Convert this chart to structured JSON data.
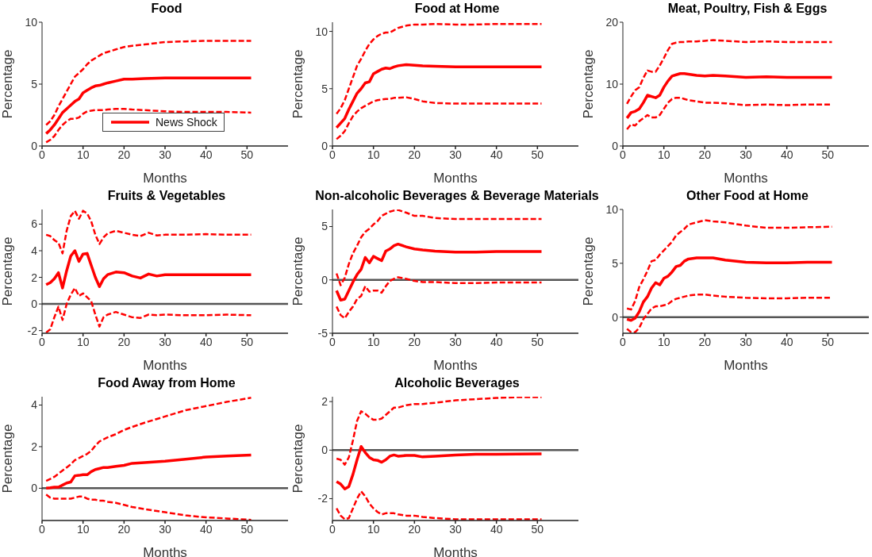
{
  "chart_data": [
    {
      "type": "line",
      "title": "Food",
      "xlabel": "Months",
      "ylabel": "Percentage",
      "xlim": [
        0,
        60
      ],
      "xticks": [
        0,
        10,
        20,
        30,
        40,
        50
      ],
      "ylim": [
        0,
        10
      ],
      "yticks": [
        0,
        5,
        10
      ],
      "legend": "bottom",
      "x": [
        1,
        2,
        3,
        4,
        5,
        6,
        7,
        8,
        9,
        10,
        11,
        12,
        13,
        14,
        15,
        16,
        18,
        20,
        22,
        25,
        30,
        35,
        40,
        45,
        51
      ],
      "series": [
        {
          "name": "News Shock",
          "color": "#ff0000",
          "line_style": "solid",
          "values": [
            1.0,
            1.3,
            1.7,
            2.2,
            2.7,
            3.0,
            3.3,
            3.6,
            3.8,
            4.3,
            4.5,
            4.7,
            4.85,
            4.9,
            5.0,
            5.1,
            5.25,
            5.4,
            5.4,
            5.45,
            5.5,
            5.5,
            5.5,
            5.5,
            5.5
          ]
        },
        {
          "color": "#ff0000",
          "line_style": "dashed",
          "values": [
            1.7,
            2.0,
            2.5,
            3.2,
            3.8,
            4.4,
            5.0,
            5.6,
            5.9,
            6.2,
            6.6,
            6.9,
            7.1,
            7.3,
            7.5,
            7.6,
            7.8,
            8.0,
            8.1,
            8.2,
            8.4,
            8.45,
            8.5,
            8.5,
            8.5
          ]
        },
        {
          "color": "#ff0000",
          "line_style": "dashed",
          "values": [
            0.3,
            0.5,
            0.8,
            1.3,
            1.7,
            2.0,
            2.2,
            2.2,
            2.3,
            2.6,
            2.8,
            2.85,
            2.9,
            2.9,
            2.9,
            2.95,
            3.0,
            3.0,
            2.95,
            2.9,
            2.8,
            2.75,
            2.75,
            2.75,
            2.7
          ]
        }
      ]
    },
    {
      "type": "line",
      "title": "Food at Home",
      "xlabel": "Months",
      "ylabel": "Percentage",
      "xlim": [
        0,
        60
      ],
      "xticks": [
        0,
        10,
        20,
        30,
        40,
        50
      ],
      "ylim": [
        0,
        10.8
      ],
      "yticks": [
        0,
        5,
        10
      ],
      "x": [
        1,
        2,
        3,
        4,
        5,
        6,
        7,
        8,
        9,
        10,
        11,
        12,
        13,
        14,
        15,
        16,
        18,
        20,
        22,
        25,
        30,
        35,
        40,
        45,
        51
      ],
      "series": [
        {
          "color": "#ff0000",
          "line_style": "solid",
          "values": [
            1.6,
            2.0,
            2.4,
            3.2,
            3.9,
            4.6,
            5.0,
            5.5,
            5.6,
            6.3,
            6.5,
            6.7,
            6.8,
            6.75,
            6.9,
            7.0,
            7.1,
            7.05,
            7.0,
            6.95,
            6.9,
            6.9,
            6.9,
            6.9,
            6.9
          ]
        },
        {
          "color": "#ff0000",
          "line_style": "dashed",
          "values": [
            2.8,
            3.3,
            4.0,
            5.0,
            6.0,
            7.0,
            7.6,
            8.3,
            8.9,
            9.3,
            9.6,
            9.8,
            9.9,
            9.9,
            10.1,
            10.3,
            10.5,
            10.6,
            10.6,
            10.65,
            10.6,
            10.6,
            10.65,
            10.65,
            10.65
          ]
        },
        {
          "color": "#ff0000",
          "line_style": "dashed",
          "values": [
            0.6,
            0.9,
            1.3,
            2.0,
            2.6,
            3.0,
            3.3,
            3.5,
            3.7,
            3.9,
            4.0,
            4.05,
            4.1,
            4.1,
            4.2,
            4.2,
            4.25,
            4.1,
            3.9,
            3.75,
            3.7,
            3.7,
            3.7,
            3.7,
            3.7
          ]
        }
      ]
    },
    {
      "type": "line",
      "title": "Meat, Poultry, Fish & Eggs",
      "xlabel": "Months",
      "ylabel": "Percentage",
      "xlim": [
        0,
        60
      ],
      "xticks": [
        0,
        10,
        20,
        30,
        40,
        50
      ],
      "ylim": [
        0,
        20
      ],
      "yticks": [
        0,
        10,
        20
      ],
      "x": [
        1,
        2,
        3,
        4,
        5,
        6,
        7,
        8,
        9,
        10,
        11,
        12,
        13,
        14,
        15,
        16,
        18,
        20,
        22,
        25,
        30,
        35,
        40,
        45,
        51
      ],
      "series": [
        {
          "color": "#ff0000",
          "line_style": "solid",
          "values": [
            4.5,
            5.4,
            5.6,
            6.0,
            7.0,
            8.2,
            8.0,
            7.8,
            8.2,
            9.5,
            10.5,
            11.3,
            11.5,
            11.7,
            11.7,
            11.6,
            11.4,
            11.3,
            11.4,
            11.3,
            11.1,
            11.2,
            11.1,
            11.1,
            11.1
          ]
        },
        {
          "color": "#ff0000",
          "line_style": "dashed",
          "values": [
            6.8,
            8.0,
            9.0,
            9.5,
            11.0,
            12.2,
            12.0,
            12.0,
            13.0,
            14.2,
            15.5,
            16.5,
            16.7,
            16.8,
            16.8,
            16.9,
            16.9,
            17.0,
            17.1,
            17.0,
            16.8,
            16.9,
            16.8,
            16.8,
            16.8
          ]
        },
        {
          "color": "#ff0000",
          "line_style": "dashed",
          "values": [
            2.7,
            3.5,
            3.3,
            4.0,
            4.5,
            5.0,
            4.6,
            4.6,
            5.0,
            6.0,
            7.0,
            7.6,
            7.8,
            7.8,
            7.6,
            7.4,
            7.2,
            7.0,
            7.0,
            6.9,
            6.6,
            6.7,
            6.6,
            6.7,
            6.7
          ]
        }
      ]
    },
    {
      "type": "line",
      "title": "Fruits & Vegetables",
      "xlabel": "Months",
      "ylabel": "Percentage",
      "xlim": [
        0,
        60
      ],
      "xticks": [
        0,
        10,
        20,
        30,
        40,
        50
      ],
      "ylim": [
        -2.2,
        7.1
      ],
      "yticks": [
        -2,
        0,
        2,
        4,
        6
      ],
      "ref_lines": [
        {
          "axis": "y",
          "value": 0,
          "color": "#555555"
        }
      ],
      "x": [
        1,
        2,
        3,
        4,
        5,
        6,
        7,
        8,
        9,
        10,
        11,
        12,
        13,
        14,
        15,
        16,
        18,
        20,
        22,
        24,
        26,
        28,
        30,
        35,
        40,
        45,
        51
      ],
      "series": [
        {
          "color": "#ff0000",
          "line_style": "solid",
          "values": [
            1.45,
            1.6,
            1.9,
            2.35,
            1.2,
            2.5,
            3.6,
            4.0,
            3.2,
            3.75,
            3.8,
            2.9,
            2.0,
            1.3,
            1.9,
            2.2,
            2.4,
            2.35,
            2.1,
            1.95,
            2.25,
            2.1,
            2.2,
            2.2,
            2.2,
            2.2,
            2.2
          ]
        },
        {
          "color": "#ff0000",
          "line_style": "dashed",
          "values": [
            5.2,
            5.1,
            4.8,
            4.6,
            3.8,
            5.5,
            6.6,
            7.0,
            6.4,
            7.0,
            6.8,
            6.2,
            5.2,
            4.5,
            5.0,
            5.3,
            5.5,
            5.35,
            5.2,
            5.1,
            5.35,
            5.15,
            5.2,
            5.2,
            5.25,
            5.2,
            5.2
          ]
        },
        {
          "color": "#ff0000",
          "line_style": "dashed",
          "values": [
            -2.15,
            -1.9,
            -1.0,
            -0.2,
            -1.2,
            0.0,
            0.7,
            1.2,
            0.6,
            0.8,
            0.5,
            0.2,
            -0.8,
            -1.7,
            -1.0,
            -0.8,
            -0.6,
            -0.8,
            -1.0,
            -1.05,
            -0.8,
            -0.85,
            -0.8,
            -0.85,
            -0.85,
            -0.8,
            -0.85
          ]
        }
      ]
    },
    {
      "type": "line",
      "title": "Non-alcoholic Beverages & Beverage Materials",
      "xlabel": "Months",
      "ylabel": "Percentage",
      "xlim": [
        0,
        60
      ],
      "xticks": [
        0,
        10,
        20,
        30,
        40,
        50
      ],
      "ylim": [
        -5,
        6.6
      ],
      "yticks": [
        -5,
        0,
        5
      ],
      "ref_lines": [
        {
          "axis": "y",
          "value": 0,
          "color": "#555555"
        }
      ],
      "x": [
        1,
        2,
        3,
        4,
        5,
        6,
        7,
        8,
        9,
        10,
        11,
        12,
        13,
        14,
        15,
        16,
        18,
        20,
        22,
        25,
        30,
        35,
        40,
        45,
        51
      ],
      "series": [
        {
          "color": "#ff0000",
          "line_style": "solid",
          "values": [
            -1.0,
            -1.9,
            -1.8,
            -1.0,
            -0.2,
            0.5,
            1.0,
            2.1,
            1.6,
            2.2,
            2.0,
            1.8,
            2.7,
            2.9,
            3.2,
            3.35,
            3.1,
            2.9,
            2.8,
            2.7,
            2.6,
            2.6,
            2.65,
            2.65,
            2.65
          ]
        },
        {
          "color": "#ff0000",
          "line_style": "dashed",
          "values": [
            0.6,
            -0.5,
            0.2,
            1.5,
            2.5,
            3.2,
            4.0,
            4.5,
            4.8,
            5.2,
            5.5,
            6.0,
            6.2,
            6.4,
            6.5,
            6.55,
            6.3,
            6.0,
            6.0,
            5.8,
            5.7,
            5.7,
            5.7,
            5.7,
            5.7
          ]
        },
        {
          "color": "#ff0000",
          "line_style": "dashed",
          "values": [
            -2.5,
            -3.3,
            -3.6,
            -3.0,
            -2.5,
            -1.8,
            -1.5,
            -0.6,
            -1.1,
            -1.0,
            -1.0,
            -1.2,
            -0.6,
            -0.1,
            0.1,
            0.25,
            0.1,
            -0.1,
            -0.2,
            -0.2,
            -0.3,
            -0.3,
            -0.25,
            -0.25,
            -0.25
          ]
        }
      ]
    },
    {
      "type": "line",
      "title": "Other Food at Home",
      "xlabel": "Months",
      "ylabel": "Percentage",
      "xlim": [
        0,
        60
      ],
      "xticks": [
        0,
        10,
        20,
        30,
        40,
        50
      ],
      "ylim": [
        -1.5,
        10
      ],
      "yticks": [
        0,
        5,
        10
      ],
      "ref_lines": [
        {
          "axis": "y",
          "value": 0,
          "color": "#555555"
        }
      ],
      "x": [
        1,
        2,
        3,
        4,
        5,
        6,
        7,
        8,
        9,
        10,
        11,
        12,
        13,
        14,
        15,
        16,
        18,
        20,
        22,
        25,
        30,
        35,
        40,
        45,
        51
      ],
      "series": [
        {
          "color": "#ff0000",
          "line_style": "solid",
          "values": [
            -0.2,
            -0.3,
            -0.1,
            0.5,
            1.4,
            1.9,
            2.7,
            3.2,
            3.0,
            3.6,
            3.8,
            4.2,
            4.7,
            4.8,
            5.2,
            5.4,
            5.5,
            5.5,
            5.5,
            5.3,
            5.1,
            5.05,
            5.05,
            5.1,
            5.1
          ]
        },
        {
          "color": "#ff0000",
          "line_style": "dashed",
          "values": [
            0.8,
            0.7,
            1.5,
            2.8,
            3.5,
            4.3,
            5.2,
            5.3,
            5.8,
            6.2,
            6.6,
            7.0,
            7.6,
            7.9,
            8.2,
            8.6,
            8.8,
            9.0,
            8.9,
            8.8,
            8.5,
            8.3,
            8.3,
            8.35,
            8.4
          ]
        },
        {
          "color": "#ff0000",
          "line_style": "dashed",
          "values": [
            -1.1,
            -1.4,
            -1.4,
            -1.0,
            -0.2,
            0.3,
            0.8,
            1.0,
            1.0,
            1.1,
            1.2,
            1.5,
            1.7,
            1.8,
            1.9,
            2.0,
            2.1,
            2.1,
            2.0,
            1.9,
            1.8,
            1.75,
            1.75,
            1.8,
            1.8
          ]
        }
      ]
    },
    {
      "type": "line",
      "title": "Food Away from Home",
      "xlabel": "Months",
      "ylabel": "Percentage",
      "xlim": [
        0,
        60
      ],
      "xticks": [
        0,
        10,
        20,
        30,
        40,
        50
      ],
      "ylim": [
        -1.55,
        4.4
      ],
      "yticks": [
        0,
        2,
        4
      ],
      "ref_lines": [
        {
          "axis": "y",
          "value": 0,
          "color": "#555555"
        }
      ],
      "x": [
        1,
        2,
        3,
        4,
        5,
        6,
        7,
        8,
        9,
        10,
        11,
        12,
        13,
        14,
        15,
        16,
        18,
        20,
        22,
        25,
        30,
        35,
        40,
        45,
        51
      ],
      "series": [
        {
          "color": "#ff0000",
          "line_style": "solid",
          "values": [
            0.0,
            0.02,
            0.05,
            0.05,
            0.15,
            0.25,
            0.3,
            0.6,
            0.62,
            0.65,
            0.65,
            0.8,
            0.9,
            0.95,
            1.0,
            1.0,
            1.05,
            1.1,
            1.2,
            1.23,
            1.3,
            1.4,
            1.5,
            1.55,
            1.6
          ]
        },
        {
          "color": "#ff0000",
          "line_style": "dashed",
          "values": [
            0.35,
            0.45,
            0.55,
            0.7,
            0.85,
            1.0,
            1.15,
            1.35,
            1.45,
            1.55,
            1.65,
            1.8,
            2.05,
            2.25,
            2.35,
            2.45,
            2.6,
            2.8,
            2.95,
            3.15,
            3.45,
            3.75,
            3.95,
            4.15,
            4.35
          ]
        },
        {
          "color": "#ff0000",
          "line_style": "dashed",
          "values": [
            -0.3,
            -0.45,
            -0.5,
            -0.5,
            -0.5,
            -0.5,
            -0.5,
            -0.45,
            -0.4,
            -0.4,
            -0.5,
            -0.55,
            -0.55,
            -0.6,
            -0.6,
            -0.65,
            -0.7,
            -0.8,
            -0.9,
            -1.0,
            -1.15,
            -1.3,
            -1.4,
            -1.45,
            -1.52
          ]
        }
      ]
    },
    {
      "type": "line",
      "title": "Alcoholic Beverages",
      "xlabel": "Months",
      "ylabel": "Percentage",
      "xlim": [
        0,
        60
      ],
      "xticks": [
        0,
        10,
        20,
        30,
        40,
        50
      ],
      "ylim": [
        -2.9,
        2.2
      ],
      "yticks": [
        -2,
        0,
        2
      ],
      "ref_lines": [
        {
          "axis": "y",
          "value": 0,
          "color": "#555555"
        }
      ],
      "x": [
        1,
        2,
        3,
        4,
        5,
        6,
        7,
        8,
        9,
        10,
        11,
        12,
        13,
        14,
        15,
        16,
        18,
        20,
        22,
        25,
        30,
        35,
        40,
        45,
        51
      ],
      "series": [
        {
          "color": "#ff0000",
          "line_style": "solid",
          "values": [
            -1.3,
            -1.4,
            -1.6,
            -1.5,
            -1.0,
            -0.4,
            0.15,
            -0.1,
            -0.3,
            -0.4,
            -0.42,
            -0.5,
            -0.4,
            -0.25,
            -0.2,
            -0.25,
            -0.22,
            -0.22,
            -0.28,
            -0.25,
            -0.2,
            -0.17,
            -0.17,
            -0.16,
            -0.15
          ]
        },
        {
          "color": "#ff0000",
          "line_style": "dashed",
          "values": [
            -0.35,
            -0.4,
            -0.6,
            -0.3,
            0.4,
            1.2,
            1.6,
            1.5,
            1.35,
            1.25,
            1.25,
            1.3,
            1.45,
            1.6,
            1.75,
            1.75,
            1.85,
            1.9,
            1.9,
            1.95,
            2.05,
            2.1,
            2.15,
            2.18,
            2.18
          ]
        },
        {
          "color": "#ff0000",
          "line_style": "dashed",
          "values": [
            -2.4,
            -2.7,
            -2.85,
            -2.8,
            -2.4,
            -2.0,
            -1.7,
            -1.9,
            -2.2,
            -2.4,
            -2.55,
            -2.65,
            -2.6,
            -2.6,
            -2.6,
            -2.65,
            -2.7,
            -2.7,
            -2.75,
            -2.8,
            -2.85,
            -2.85,
            -2.85,
            -2.85,
            -2.85
          ]
        }
      ]
    }
  ]
}
